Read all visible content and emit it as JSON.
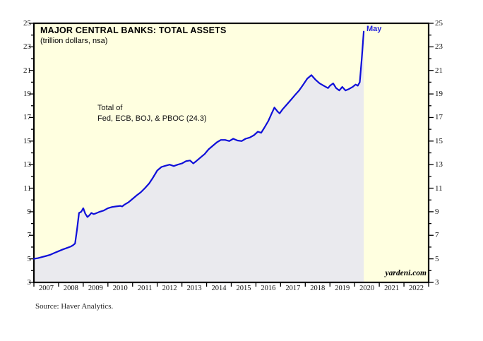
{
  "source": "Source: Haver Analytics.",
  "branding": "yardeni.com",
  "colors": {
    "page_bg": "#ffffff",
    "plot_bg": "#ffffe0",
    "area_fill": "#eaeaee",
    "line": "#0f0fd9",
    "axis": "#000000",
    "peak_label_color": "#2222dd"
  },
  "chart_data": {
    "type": "area",
    "title": "MAJOR CENTRAL BANKS: TOTAL ASSETS",
    "subtitle": "(trillion dollars, nsa)",
    "annotation_line1": "Total of",
    "annotation_line2": "Fed, ECB, BOJ, & PBOC (24.3)",
    "latest_point_label": "May",
    "latest_value": 24.3,
    "xlabel": "",
    "ylabel": "trillion dollars",
    "grid": false,
    "legend": "none",
    "xlim": [
      2007,
      2023
    ],
    "ylim": [
      3,
      25
    ],
    "y_major_ticks": [
      3,
      5,
      7,
      9,
      11,
      13,
      15,
      17,
      19,
      21,
      23,
      25
    ],
    "y_minor_ticks": [
      4,
      6,
      8,
      10,
      12,
      14,
      16,
      18,
      20,
      22,
      24
    ],
    "x_tick_years": [
      2007,
      2008,
      2009,
      2010,
      2011,
      2012,
      2013,
      2014,
      2015,
      2016,
      2017,
      2018,
      2019,
      2020,
      2021,
      2022
    ],
    "points": [
      [
        2007.0,
        5.0
      ],
      [
        2007.17,
        5.06
      ],
      [
        2007.33,
        5.15
      ],
      [
        2007.5,
        5.25
      ],
      [
        2007.67,
        5.35
      ],
      [
        2007.83,
        5.5
      ],
      [
        2008.0,
        5.65
      ],
      [
        2008.17,
        5.8
      ],
      [
        2008.33,
        5.92
      ],
      [
        2008.5,
        6.05
      ],
      [
        2008.58,
        6.15
      ],
      [
        2008.67,
        6.3
      ],
      [
        2008.75,
        7.5
      ],
      [
        2008.83,
        8.9
      ],
      [
        2008.92,
        9.0
      ],
      [
        2009.0,
        9.3
      ],
      [
        2009.08,
        8.85
      ],
      [
        2009.17,
        8.55
      ],
      [
        2009.25,
        8.7
      ],
      [
        2009.33,
        8.9
      ],
      [
        2009.42,
        8.8
      ],
      [
        2009.5,
        8.85
      ],
      [
        2009.67,
        9.0
      ],
      [
        2009.83,
        9.1
      ],
      [
        2010.0,
        9.3
      ],
      [
        2010.17,
        9.4
      ],
      [
        2010.33,
        9.45
      ],
      [
        2010.5,
        9.5
      ],
      [
        2010.58,
        9.45
      ],
      [
        2010.67,
        9.6
      ],
      [
        2010.83,
        9.8
      ],
      [
        2011.0,
        10.1
      ],
      [
        2011.17,
        10.4
      ],
      [
        2011.33,
        10.65
      ],
      [
        2011.5,
        11.0
      ],
      [
        2011.67,
        11.4
      ],
      [
        2011.83,
        11.9
      ],
      [
        2012.0,
        12.5
      ],
      [
        2012.17,
        12.8
      ],
      [
        2012.33,
        12.9
      ],
      [
        2012.5,
        13.0
      ],
      [
        2012.67,
        12.88
      ],
      [
        2012.83,
        13.0
      ],
      [
        2013.0,
        13.1
      ],
      [
        2013.17,
        13.3
      ],
      [
        2013.33,
        13.35
      ],
      [
        2013.46,
        13.1
      ],
      [
        2013.58,
        13.3
      ],
      [
        2013.75,
        13.6
      ],
      [
        2013.92,
        13.9
      ],
      [
        2014.08,
        14.3
      ],
      [
        2014.25,
        14.6
      ],
      [
        2014.42,
        14.9
      ],
      [
        2014.58,
        15.1
      ],
      [
        2014.75,
        15.1
      ],
      [
        2014.92,
        15.0
      ],
      [
        2015.08,
        15.2
      ],
      [
        2015.25,
        15.05
      ],
      [
        2015.42,
        15.0
      ],
      [
        2015.58,
        15.2
      ],
      [
        2015.75,
        15.3
      ],
      [
        2015.92,
        15.5
      ],
      [
        2016.08,
        15.8
      ],
      [
        2016.21,
        15.7
      ],
      [
        2016.33,
        16.1
      ],
      [
        2016.5,
        16.7
      ],
      [
        2016.63,
        17.3
      ],
      [
        2016.75,
        17.85
      ],
      [
        2016.88,
        17.5
      ],
      [
        2016.96,
        17.35
      ],
      [
        2017.08,
        17.7
      ],
      [
        2017.25,
        18.1
      ],
      [
        2017.42,
        18.5
      ],
      [
        2017.58,
        18.9
      ],
      [
        2017.75,
        19.3
      ],
      [
        2017.92,
        19.8
      ],
      [
        2018.08,
        20.3
      ],
      [
        2018.25,
        20.6
      ],
      [
        2018.42,
        20.2
      ],
      [
        2018.58,
        19.9
      ],
      [
        2018.75,
        19.7
      ],
      [
        2018.92,
        19.5
      ],
      [
        2019.0,
        19.7
      ],
      [
        2019.13,
        19.9
      ],
      [
        2019.25,
        19.5
      ],
      [
        2019.38,
        19.3
      ],
      [
        2019.5,
        19.6
      ],
      [
        2019.63,
        19.3
      ],
      [
        2019.75,
        19.4
      ],
      [
        2019.92,
        19.6
      ],
      [
        2020.04,
        19.8
      ],
      [
        2020.13,
        19.7
      ],
      [
        2020.21,
        20.0
      ],
      [
        2020.29,
        22.0
      ],
      [
        2020.37,
        24.3
      ]
    ]
  }
}
